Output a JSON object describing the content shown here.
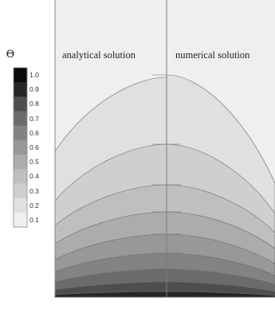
{
  "chart_data": {
    "type": "heatmap",
    "legend_title": "Θ",
    "colorbar_ticks": [
      "1.0",
      "0.9",
      "0.8",
      "0.7",
      "0.6",
      "0.6",
      "0.5",
      "0.4",
      "0.3",
      "0.2",
      "0.1"
    ],
    "levels": [
      0.1,
      0.2,
      0.3,
      0.4,
      0.5,
      0.6,
      0.7,
      0.8,
      0.9,
      1.0
    ],
    "level_colors": [
      "#efefef",
      "#e0e0e0",
      "#cfcfcf",
      "#bfbfbf",
      "#acacac",
      "#989898",
      "#838383",
      "#6b6b6b",
      "#4e4e4e",
      "#262626",
      "#0b0b0b"
    ],
    "panels": [
      {
        "label": "analytical solution"
      },
      {
        "label": "numerical solution"
      }
    ],
    "legend_placement": "left",
    "grid": false
  }
}
